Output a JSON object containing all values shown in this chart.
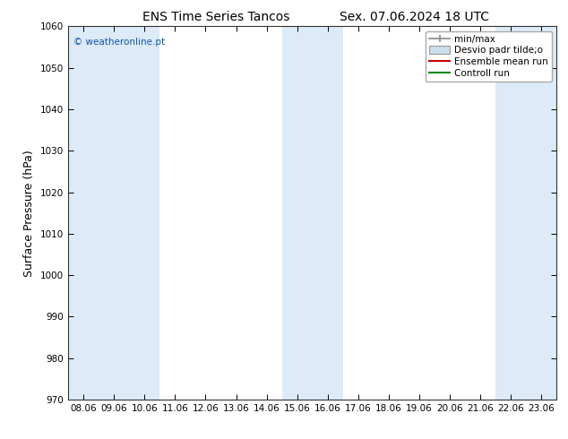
{
  "title_left": "ENS Time Series Tancos",
  "title_right": "Sex. 07.06.2024 18 UTC",
  "ylabel": "Surface Pressure (hPa)",
  "ylim": [
    970,
    1060
  ],
  "yticks": [
    970,
    980,
    990,
    1000,
    1010,
    1020,
    1030,
    1040,
    1050,
    1060
  ],
  "x_labels": [
    "08.06",
    "09.06",
    "10.06",
    "11.06",
    "12.06",
    "13.06",
    "14.06",
    "15.06",
    "16.06",
    "17.06",
    "18.06",
    "19.06",
    "20.06",
    "21.06",
    "22.06",
    "23.06"
  ],
  "n_cols": 16,
  "shaded_col_ranges": [
    [
      0,
      2
    ],
    [
      7,
      8
    ],
    [
      14,
      15
    ]
  ],
  "shade_color": "#ddeaf7",
  "background_color": "#ffffff",
  "plot_bg_color": "#ffffff",
  "legend_items": [
    "min/max",
    "Desvio padr tilde;o",
    "Ensemble mean run",
    "Controll run"
  ],
  "legend_line_colors": [
    "#888888",
    "#aaaaaa",
    "#cc0000",
    "#008800"
  ],
  "watermark": "© weatheronline.pt",
  "title_fontsize": 10,
  "tick_fontsize": 7.5,
  "ylabel_fontsize": 9,
  "legend_fontsize": 7.5
}
